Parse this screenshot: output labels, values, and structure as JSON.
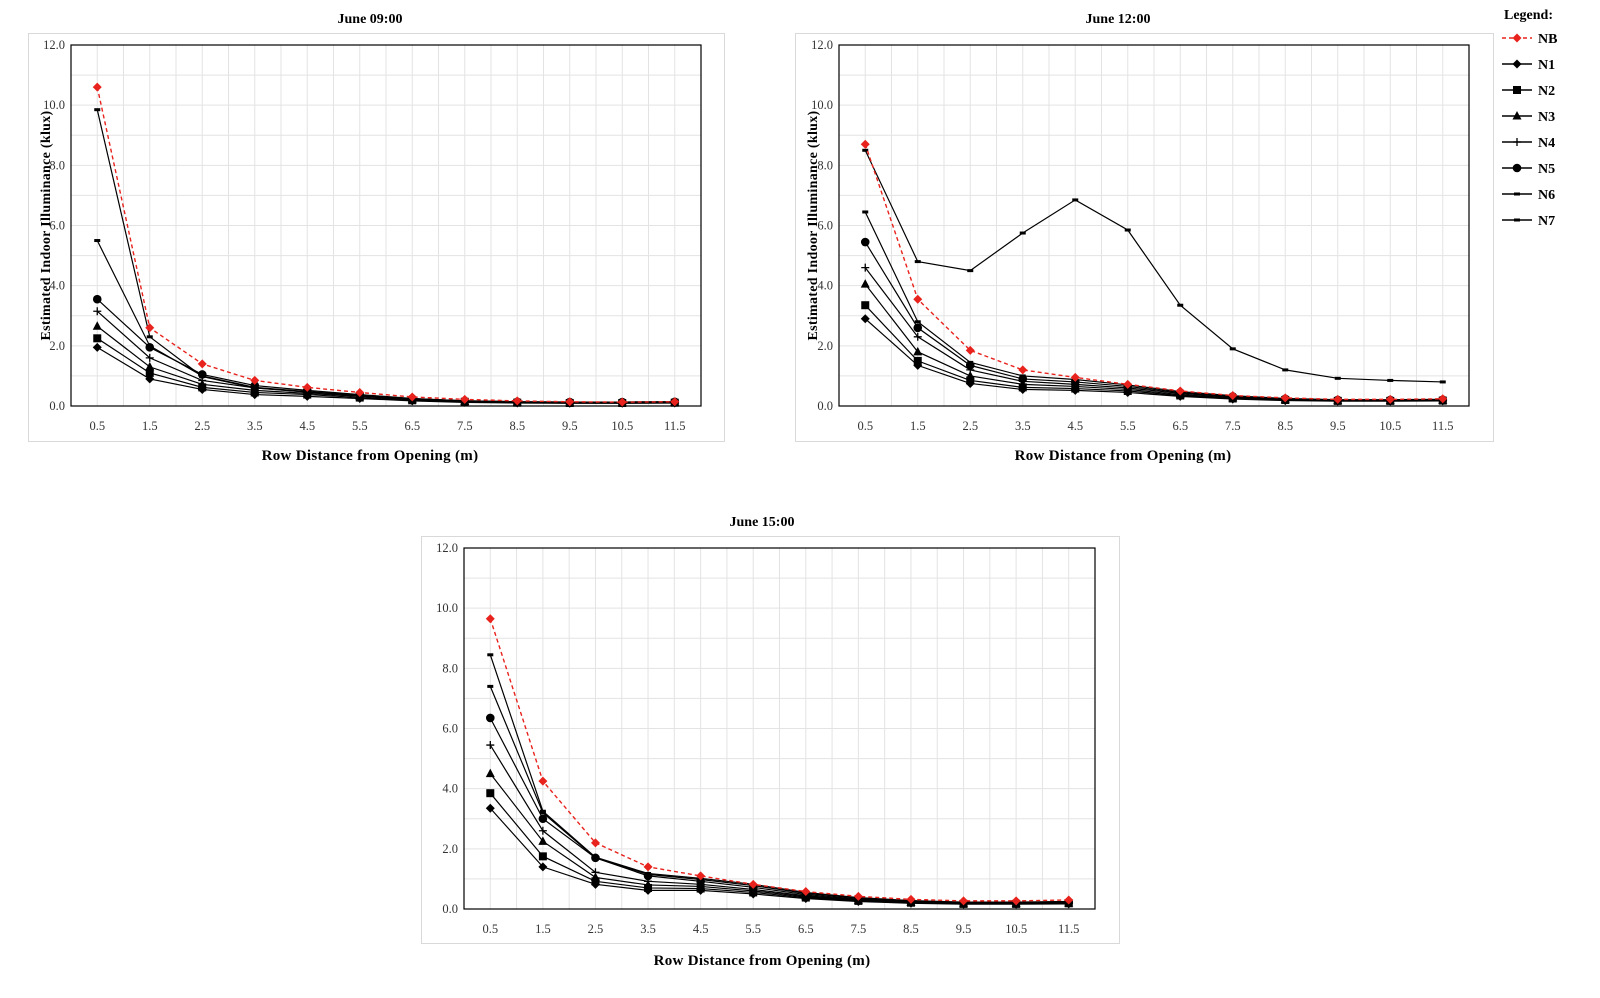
{
  "legend": {
    "title": "Legend:",
    "entries": [
      {
        "name": "NB",
        "color": "#e8221c",
        "marker": "diamond",
        "dash": true
      },
      {
        "name": "N1",
        "color": "#000000",
        "marker": "diamond",
        "dash": false
      },
      {
        "name": "N2",
        "color": "#000000",
        "marker": "square",
        "dash": false
      },
      {
        "name": "N3",
        "color": "#000000",
        "marker": "triangle",
        "dash": false
      },
      {
        "name": "N4",
        "color": "#000000",
        "marker": "plus",
        "dash": false
      },
      {
        "name": "N5",
        "color": "#000000",
        "marker": "circle",
        "dash": false
      },
      {
        "name": "N6",
        "color": "#000000",
        "marker": "dash",
        "dash": false
      },
      {
        "name": "N7",
        "color": "#000000",
        "marker": "dash",
        "dash": false
      }
    ]
  },
  "chart_data": [
    {
      "type": "line",
      "title": "June 09:00",
      "xlabel": "Row Distance from Opening (m)",
      "ylabel": "Estimated Indoor Illuminance (klux)",
      "ylim": [
        0,
        12
      ],
      "yticks": [
        "0.0",
        "2.0",
        "4.0",
        "6.0",
        "8.0",
        "10.0",
        "12.0"
      ],
      "categories": [
        "0.5",
        "1.5",
        "2.5",
        "3.5",
        "4.5",
        "5.5",
        "6.5",
        "7.5",
        "8.5",
        "9.5",
        "10.5",
        "11.5"
      ],
      "grid": true,
      "series": [
        {
          "name": "NB",
          "values": [
            10.6,
            2.6,
            1.4,
            0.85,
            0.62,
            0.45,
            0.3,
            0.22,
            0.17,
            0.14,
            0.13,
            0.14
          ]
        },
        {
          "name": "N1",
          "values": [
            1.95,
            0.9,
            0.55,
            0.38,
            0.32,
            0.25,
            0.17,
            0.12,
            0.1,
            0.09,
            0.09,
            0.1
          ]
        },
        {
          "name": "N2",
          "values": [
            2.25,
            1.1,
            0.62,
            0.45,
            0.38,
            0.28,
            0.19,
            0.14,
            0.11,
            0.1,
            0.1,
            0.11
          ]
        },
        {
          "name": "N3",
          "values": [
            2.65,
            1.3,
            0.72,
            0.52,
            0.42,
            0.32,
            0.21,
            0.15,
            0.12,
            0.11,
            0.11,
            0.12
          ]
        },
        {
          "name": "N4",
          "values": [
            3.15,
            1.6,
            0.85,
            0.6,
            0.47,
            0.35,
            0.23,
            0.16,
            0.13,
            0.12,
            0.12,
            0.13
          ]
        },
        {
          "name": "N5",
          "values": [
            3.55,
            1.95,
            1.05,
            0.68,
            0.52,
            0.38,
            0.25,
            0.17,
            0.14,
            0.13,
            0.13,
            0.14
          ]
        },
        {
          "name": "N6",
          "values": [
            5.5,
            2.0,
            1.0,
            0.62,
            0.48,
            0.36,
            0.24,
            0.17,
            0.14,
            0.13,
            0.13,
            0.14
          ]
        },
        {
          "name": "N7",
          "values": [
            9.85,
            2.3,
            0.98,
            0.6,
            0.46,
            0.35,
            0.24,
            0.17,
            0.14,
            0.13,
            0.13,
            0.14
          ]
        }
      ]
    },
    {
      "type": "line",
      "title": "June 12:00",
      "xlabel": "Row Distance from Opening (m)",
      "ylabel": "Estimated Indoor Illuminance (klux)",
      "ylim": [
        0,
        12
      ],
      "yticks": [
        "0.0",
        "2.0",
        "4.0",
        "6.0",
        "8.0",
        "10.0",
        "12.0"
      ],
      "categories": [
        "0.5",
        "1.5",
        "2.5",
        "3.5",
        "4.5",
        "5.5",
        "6.5",
        "7.5",
        "8.5",
        "9.5",
        "10.5",
        "11.5"
      ],
      "grid": true,
      "series": [
        {
          "name": "NB",
          "values": [
            8.7,
            3.55,
            1.85,
            1.2,
            0.95,
            0.72,
            0.5,
            0.35,
            0.27,
            0.22,
            0.22,
            0.24
          ]
        },
        {
          "name": "N1",
          "values": [
            2.9,
            1.35,
            0.75,
            0.55,
            0.52,
            0.45,
            0.32,
            0.23,
            0.18,
            0.16,
            0.16,
            0.17
          ]
        },
        {
          "name": "N2",
          "values": [
            3.35,
            1.5,
            0.85,
            0.62,
            0.58,
            0.5,
            0.35,
            0.25,
            0.2,
            0.17,
            0.17,
            0.18
          ]
        },
        {
          "name": "N3",
          "values": [
            4.05,
            1.8,
            1.0,
            0.72,
            0.65,
            0.55,
            0.38,
            0.27,
            0.21,
            0.18,
            0.18,
            0.19
          ]
        },
        {
          "name": "N4",
          "values": [
            4.6,
            2.3,
            1.2,
            0.82,
            0.72,
            0.6,
            0.42,
            0.3,
            0.23,
            0.19,
            0.19,
            0.2
          ]
        },
        {
          "name": "N5",
          "values": [
            5.45,
            2.6,
            1.35,
            0.9,
            0.8,
            0.65,
            0.45,
            0.32,
            0.24,
            0.2,
            0.2,
            0.21
          ]
        },
        {
          "name": "N6",
          "values": [
            6.45,
            2.8,
            1.45,
            1.0,
            0.88,
            0.7,
            0.48,
            0.34,
            0.25,
            0.21,
            0.21,
            0.22
          ]
        },
        {
          "name": "N7",
          "values": [
            8.5,
            4.8,
            4.5,
            5.75,
            6.85,
            5.85,
            3.35,
            1.9,
            1.2,
            0.92,
            0.85,
            0.8
          ]
        }
      ]
    },
    {
      "type": "line",
      "title": "June 15:00",
      "xlabel": "Row Distance from Opening (m)",
      "ylabel": "",
      "ylim": [
        0,
        12
      ],
      "yticks": [
        "0.0",
        "2.0",
        "4.0",
        "6.0",
        "8.0",
        "10.0",
        "12.0"
      ],
      "categories": [
        "0.5",
        "1.5",
        "2.5",
        "3.5",
        "4.5",
        "5.5",
        "6.5",
        "7.5",
        "8.5",
        "9.5",
        "10.5",
        "11.5"
      ],
      "grid": true,
      "series": [
        {
          "name": "NB",
          "values": [
            9.65,
            4.25,
            2.2,
            1.4,
            1.1,
            0.82,
            0.58,
            0.42,
            0.32,
            0.27,
            0.27,
            0.3
          ]
        },
        {
          "name": "N1",
          "values": [
            3.35,
            1.4,
            0.82,
            0.62,
            0.62,
            0.5,
            0.35,
            0.25,
            0.19,
            0.16,
            0.16,
            0.17
          ]
        },
        {
          "name": "N2",
          "values": [
            3.85,
            1.75,
            0.92,
            0.7,
            0.68,
            0.55,
            0.38,
            0.27,
            0.21,
            0.17,
            0.17,
            0.19
          ]
        },
        {
          "name": "N3",
          "values": [
            4.5,
            2.25,
            1.05,
            0.8,
            0.75,
            0.6,
            0.41,
            0.29,
            0.22,
            0.18,
            0.18,
            0.2
          ]
        },
        {
          "name": "N4",
          "values": [
            5.45,
            2.6,
            1.22,
            0.92,
            0.82,
            0.65,
            0.44,
            0.31,
            0.23,
            0.19,
            0.19,
            0.21
          ]
        },
        {
          "name": "N5",
          "values": [
            6.35,
            3.0,
            1.7,
            1.1,
            0.92,
            0.72,
            0.48,
            0.33,
            0.25,
            0.2,
            0.2,
            0.22
          ]
        },
        {
          "name": "N6",
          "values": [
            7.4,
            3.2,
            1.7,
            1.15,
            0.98,
            0.78,
            0.52,
            0.36,
            0.27,
            0.22,
            0.22,
            0.24
          ]
        },
        {
          "name": "N7",
          "values": [
            8.45,
            3.25,
            1.72,
            1.18,
            1.02,
            0.82,
            0.55,
            0.38,
            0.28,
            0.23,
            0.23,
            0.25
          ]
        }
      ]
    }
  ]
}
